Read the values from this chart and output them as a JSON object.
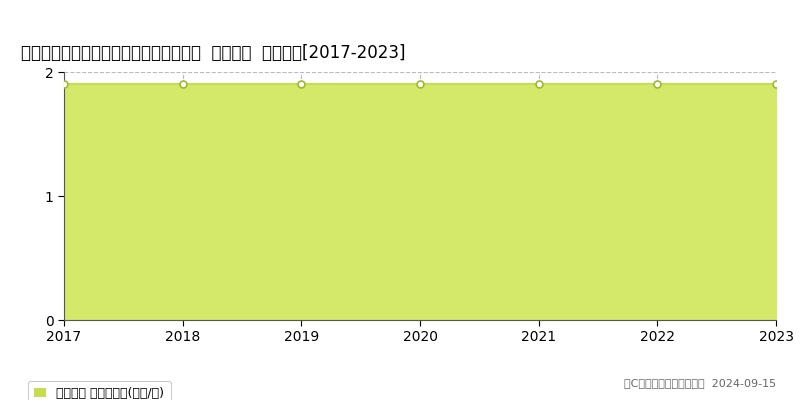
{
  "title": "愛知県日進市米野木町農来１２０番７外  地価公示  地価推移[2017-2023]",
  "years": [
    2017,
    2018,
    2019,
    2020,
    2021,
    2022,
    2023
  ],
  "values": [
    1.9,
    1.9,
    1.9,
    1.9,
    1.9,
    1.9,
    1.9
  ],
  "ylim": [
    0,
    2
  ],
  "yticks": [
    0,
    1,
    2
  ],
  "line_color": "#c8dc50",
  "fill_color": "#d4e86a",
  "marker_color": "#ffffff",
  "marker_edge_color": "#a0b830",
  "grid_color": "#bbbbbb",
  "background_color": "#ffffff",
  "legend_label": "地価公示 平均坪単価(万円/坪)",
  "legend_marker_color": "#c8dc50",
  "copyright_text": "（C）土地価格ドットコム  2024-09-15",
  "title_fontsize": 12,
  "axis_fontsize": 10,
  "legend_fontsize": 9,
  "copyright_fontsize": 8
}
